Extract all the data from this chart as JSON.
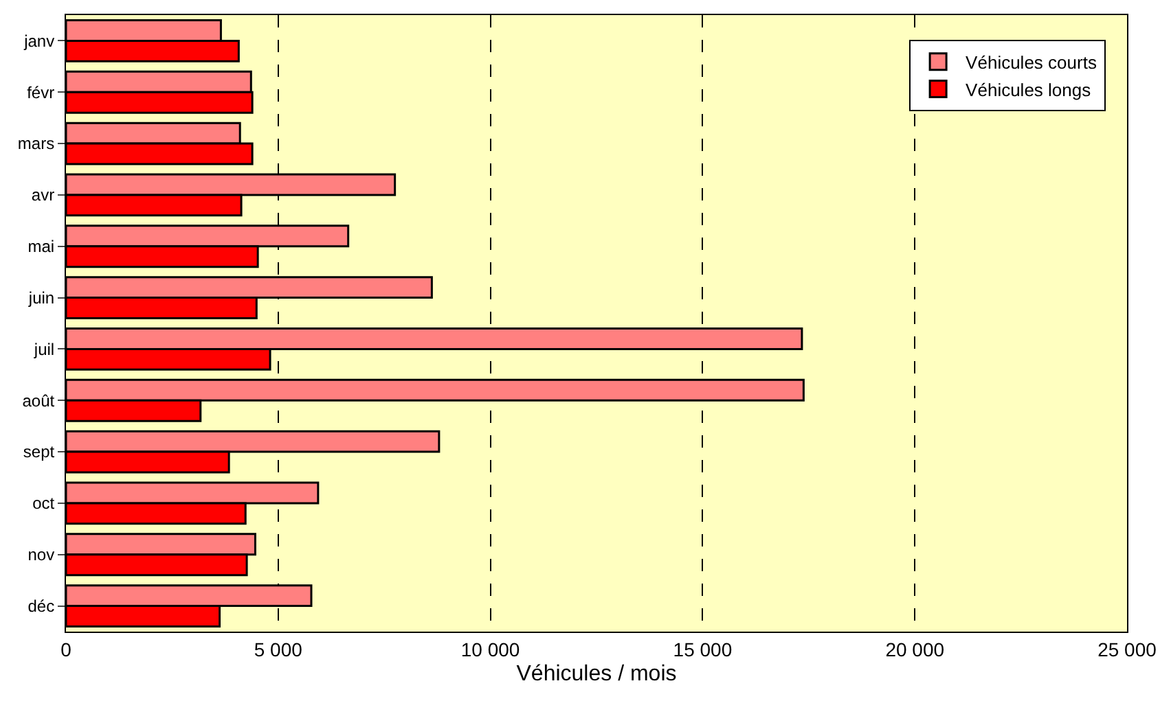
{
  "chart_data": {
    "type": "bar",
    "orientation": "horizontal",
    "xlabel": "Véhicules / mois",
    "categories": [
      "janv",
      "févr",
      "mars",
      "avr",
      "mai",
      "juin",
      "juil",
      "août",
      "sept",
      "oct",
      "nov",
      "déc"
    ],
    "series": [
      {
        "name": "Véhicules courts",
        "color": "#ff8080",
        "values": [
          3650,
          4360,
          4100,
          7750,
          6650,
          8620,
          17340,
          17380,
          8790,
          5940,
          4460,
          5780
        ]
      },
      {
        "name": "Véhicules longs",
        "color": "#ff0000",
        "values": [
          4070,
          4390,
          4390,
          4130,
          4520,
          4490,
          4810,
          3170,
          3840,
          4230,
          4260,
          3620
        ]
      }
    ],
    "xlim": [
      0,
      25000
    ],
    "xticks": [
      0,
      {
        "value": 5000,
        "label": "5 000"
      },
      {
        "value": 10000,
        "label": "10 000"
      },
      {
        "value": 15000,
        "label": "15 000"
      },
      {
        "value": 20000,
        "label": "20 000"
      },
      {
        "value": 25000,
        "label": "25 000"
      }
    ],
    "grid": "x",
    "legend": "top right"
  }
}
